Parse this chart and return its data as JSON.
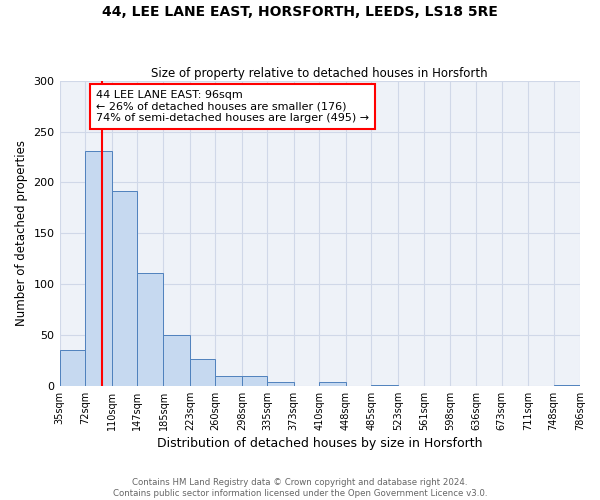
{
  "title": "44, LEE LANE EAST, HORSFORTH, LEEDS, LS18 5RE",
  "subtitle": "Size of property relative to detached houses in Horsforth",
  "xlabel": "Distribution of detached houses by size in Horsforth",
  "ylabel": "Number of detached properties",
  "bin_edges": [
    35,
    72,
    110,
    147,
    185,
    223,
    260,
    298,
    335,
    373,
    410,
    448,
    485,
    523,
    561,
    598,
    636,
    673,
    711,
    748,
    786
  ],
  "bin_heights": [
    35,
    231,
    192,
    111,
    50,
    26,
    10,
    10,
    4,
    0,
    4,
    0,
    1,
    0,
    0,
    0,
    0,
    0,
    0,
    1
  ],
  "bar_color": "#c6d9f0",
  "bar_edge_color": "#4f81bd",
  "red_line_x": 96,
  "annotation_text": "44 LEE LANE EAST: 96sqm\n← 26% of detached houses are smaller (176)\n74% of semi-detached houses are larger (495) →",
  "annotation_box_color": "white",
  "annotation_box_edge_color": "red",
  "ylim": [
    0,
    300
  ],
  "yticks": [
    0,
    50,
    100,
    150,
    200,
    250,
    300
  ],
  "grid_color": "#d0d8e8",
  "background_color": "#eef2f8",
  "footer_line1": "Contains HM Land Registry data © Crown copyright and database right 2024.",
  "footer_line2": "Contains public sector information licensed under the Open Government Licence v3.0.",
  "tick_labels": [
    "35sqm",
    "72sqm",
    "110sqm",
    "147sqm",
    "185sqm",
    "223sqm",
    "260sqm",
    "298sqm",
    "335sqm",
    "373sqm",
    "410sqm",
    "448sqm",
    "485sqm",
    "523sqm",
    "561sqm",
    "598sqm",
    "636sqm",
    "673sqm",
    "711sqm",
    "748sqm",
    "786sqm"
  ]
}
